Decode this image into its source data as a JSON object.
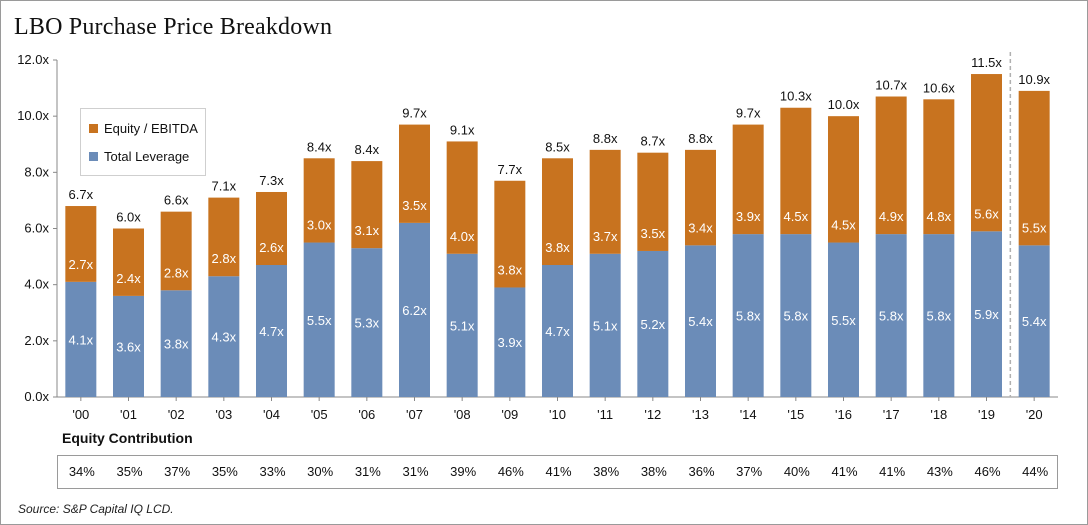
{
  "title": "LBO Purchase Price Breakdown",
  "chart_data": {
    "type": "bar",
    "stacked": true,
    "categories": [
      "'00",
      "'01",
      "'02",
      "'03",
      "'04",
      "'05",
      "'06",
      "'07",
      "'08",
      "'09",
      "'10",
      "'11",
      "'12",
      "'13",
      "'14",
      "'15",
      "'16",
      "'17",
      "'18",
      "'19",
      "'20"
    ],
    "series": [
      {
        "name": "Total Leverage",
        "color": "#6b8cb8",
        "values": [
          4.1,
          3.6,
          3.8,
          4.3,
          4.7,
          5.5,
          5.3,
          6.2,
          5.1,
          3.9,
          4.7,
          5.1,
          5.2,
          5.4,
          5.8,
          5.8,
          5.5,
          5.8,
          5.8,
          5.9,
          5.4
        ],
        "labels": [
          "4.1x",
          "3.6x",
          "3.8x",
          "4.3x",
          "4.7x",
          "5.5x",
          "5.3x",
          "6.2x",
          "5.1x",
          "3.9x",
          "4.7x",
          "5.1x",
          "5.2x",
          "5.4x",
          "5.8x",
          "5.8x",
          "5.5x",
          "5.8x",
          "5.8x",
          "5.9x",
          "5.4x"
        ]
      },
      {
        "name": "Equity / EBITDA",
        "color": "#c8731f",
        "values": [
          2.7,
          2.4,
          2.8,
          2.8,
          2.6,
          3.0,
          3.1,
          3.5,
          4.0,
          3.8,
          3.8,
          3.7,
          3.5,
          3.4,
          3.9,
          4.5,
          4.5,
          4.9,
          4.8,
          5.6,
          5.5
        ],
        "labels": [
          "2.7x",
          "2.4x",
          "2.8x",
          "2.8x",
          "2.6x",
          "3.0x",
          "3.1x",
          "3.5x",
          "4.0x",
          "3.8x",
          "3.8x",
          "3.7x",
          "3.5x",
          "3.4x",
          "3.9x",
          "4.5x",
          "4.5x",
          "4.9x",
          "4.8x",
          "5.6x",
          "5.5x"
        ]
      }
    ],
    "totals": [
      6.7,
      6.0,
      6.6,
      7.1,
      7.3,
      8.4,
      8.4,
      9.7,
      9.1,
      7.7,
      8.5,
      8.8,
      8.7,
      8.8,
      9.7,
      10.3,
      10.0,
      10.7,
      10.6,
      11.5,
      10.9
    ],
    "total_labels": [
      "6.7x",
      "6.0x",
      "6.6x",
      "7.1x",
      "7.3x",
      "8.4x",
      "8.4x",
      "9.7x",
      "9.1x",
      "7.7x",
      "8.5x",
      "8.8x",
      "8.7x",
      "8.8x",
      "9.7x",
      "10.3x",
      "10.0x",
      "10.7x",
      "10.6x",
      "11.5x",
      "10.9x"
    ],
    "ylim": [
      0,
      12
    ],
    "yticks": [
      "0.0x",
      "2.0x",
      "4.0x",
      "6.0x",
      "8.0x",
      "10.0x",
      "12.0x"
    ],
    "ytick_values": [
      0,
      2,
      4,
      6,
      8,
      10,
      12
    ],
    "legend_position": "top-left",
    "divider_before_index": 20
  },
  "legend": {
    "equity": "Equity / EBITDA",
    "leverage": "Total Leverage",
    "equity_color": "#c8731f",
    "leverage_color": "#6b8cb8"
  },
  "equity_contribution": {
    "label": "Equity Contribution",
    "values": [
      "34%",
      "35%",
      "37%",
      "35%",
      "33%",
      "30%",
      "31%",
      "31%",
      "39%",
      "46%",
      "41%",
      "38%",
      "38%",
      "36%",
      "37%",
      "40%",
      "41%",
      "41%",
      "43%",
      "46%",
      "44%"
    ]
  },
  "source": "Source: S&P Capital IQ LCD."
}
